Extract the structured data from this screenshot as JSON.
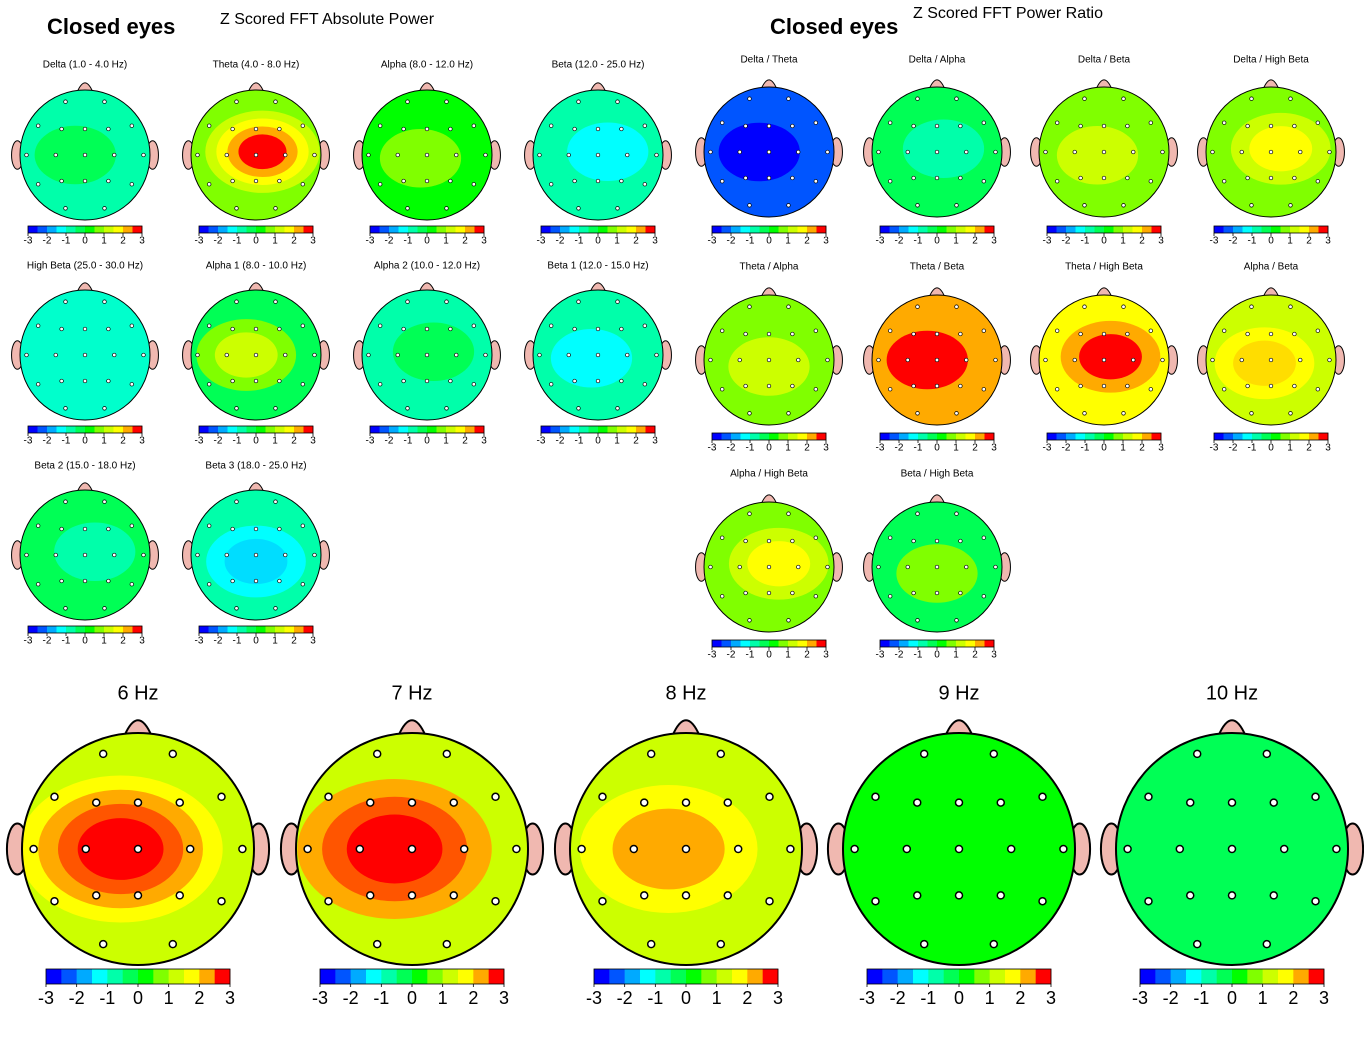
{
  "left_title": "Closed eyes",
  "left_subtitle": "Z Scored FFT Absolute Power",
  "right_title": "Closed eyes",
  "right_subtitle": "Z Scored FFT Power Ratio",
  "scale_ticks": [
    -3,
    -2,
    -1,
    0,
    1,
    2,
    3
  ],
  "scale_colors": [
    "#0000ff",
    "#0055ff",
    "#00aaff",
    "#00ffff",
    "#00ffaa",
    "#00ff55",
    "#00ff00",
    "#80ff00",
    "#ccff00",
    "#ffff00",
    "#ffaa00",
    "#ff0000"
  ],
  "absolute_maps": [
    {
      "label": "Delta (1.0 - 4.0 Hz)",
      "colors": [
        "#00ffaa",
        "#00ff55"
      ]
    },
    {
      "label": "Theta (4.0 - 8.0 Hz)",
      "colors": [
        "#80ff00",
        "#ccff00",
        "#ffff00",
        "#ffaa00",
        "#ff0000"
      ]
    },
    {
      "label": "Alpha (8.0 - 12.0 Hz)",
      "colors": [
        "#00ff00",
        "#80ff00"
      ]
    },
    {
      "label": "Beta (12.0 - 25.0 Hz)",
      "colors": [
        "#00ffaa",
        "#00ffff"
      ]
    },
    {
      "label": "High Beta (25.0 - 30.0 Hz)",
      "colors": [
        "#00ffcc"
      ]
    },
    {
      "label": "Alpha 1 (8.0 - 10.0 Hz)",
      "colors": [
        "#00ff55",
        "#80ff00",
        "#ccff00"
      ]
    },
    {
      "label": "Alpha 2 (10.0 - 12.0 Hz)",
      "colors": [
        "#00ffaa",
        "#00ff55"
      ]
    },
    {
      "label": "Beta 1 (12.0 - 15.0 Hz)",
      "colors": [
        "#00ffaa",
        "#00ffff"
      ]
    },
    {
      "label": "Beta 2 (15.0 - 18.0 Hz)",
      "colors": [
        "#00ff55",
        "#00ffaa"
      ]
    },
    {
      "label": "Beta 3 (18.0 - 25.0 Hz)",
      "colors": [
        "#00ffaa",
        "#00ffff",
        "#00ddff"
      ]
    }
  ],
  "ratio_maps": [
    {
      "label": "Delta / Theta",
      "colors": [
        "#0055ff",
        "#0000ff"
      ]
    },
    {
      "label": "Delta / Alpha",
      "colors": [
        "#00ff55",
        "#00ffaa"
      ]
    },
    {
      "label": "Delta / Beta",
      "colors": [
        "#80ff00",
        "#ccff00"
      ]
    },
    {
      "label": "Delta / High Beta",
      "colors": [
        "#80ff00",
        "#ccff00",
        "#ffff00"
      ]
    },
    {
      "label": "Theta / Alpha",
      "colors": [
        "#80ff00",
        "#ccff00"
      ]
    },
    {
      "label": "Theta / Beta",
      "colors": [
        "#ffaa00",
        "#ff0000"
      ]
    },
    {
      "label": "Theta / High Beta",
      "colors": [
        "#ffff00",
        "#ffaa00",
        "#ff0000"
      ]
    },
    {
      "label": "Alpha / Beta",
      "colors": [
        "#ccff00",
        "#ffff00",
        "#ffdd00"
      ]
    },
    {
      "label": "Alpha / High Beta",
      "colors": [
        "#80ff00",
        "#ccff00",
        "#ffff00"
      ]
    },
    {
      "label": "Beta / High Beta",
      "colors": [
        "#00ff55",
        "#80ff00"
      ]
    }
  ],
  "frequency_maps": [
    {
      "label": "6 Hz",
      "colors": [
        "#ccff00",
        "#ffff00",
        "#ffaa00",
        "#ff5500",
        "#ff0000"
      ]
    },
    {
      "label": "7 Hz",
      "colors": [
        "#ccff00",
        "#ffaa00",
        "#ff5500",
        "#ff0000"
      ]
    },
    {
      "label": "8 Hz",
      "colors": [
        "#ccff00",
        "#ffff00",
        "#ffaa00"
      ]
    },
    {
      "label": "9 Hz",
      "colors": [
        "#00ff00"
      ]
    },
    {
      "label": "10 Hz",
      "colors": [
        "#00ff55"
      ]
    }
  ]
}
